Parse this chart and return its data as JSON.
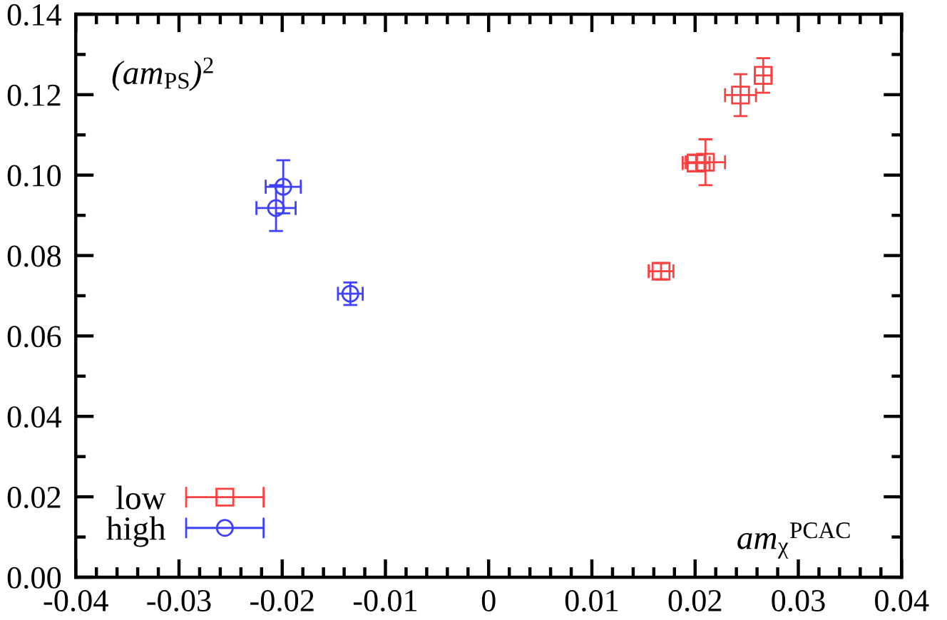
{
  "chart_data": {
    "type": "scatter",
    "xlabel": "am$_{χ}$$^{PCAC}$",
    "ylabel": "(am$_{PS}$)$^{2}$",
    "legend": "bottom left",
    "xlim": [
      -0.04,
      0.04
    ],
    "ylim": [
      0,
      0.14
    ],
    "xticks": [
      -0.04,
      -0.03,
      -0.02,
      -0.01,
      0,
      0.01,
      0.02,
      0.03,
      0.04
    ],
    "yticks": [
      {
        "value": 0,
        "label": "0.00"
      },
      {
        "value": 0.02,
        "label": "0.02"
      },
      {
        "value": 0.04,
        "label": "0.04"
      },
      {
        "value": 0.06,
        "label": "0.06"
      },
      {
        "value": 0.08,
        "label": "0.08"
      },
      {
        "value": 0.1,
        "label": "0.10"
      },
      {
        "value": 0.12,
        "label": "0.12"
      },
      {
        "value": 0.14,
        "label": "0.14"
      }
    ],
    "series": [
      {
        "name": "low",
        "color": "#ff4040",
        "marker": "square",
        "x": [
          0.0167,
          0.0201,
          0.021,
          0.0244,
          0.0266
        ],
        "values": [
          0.0761,
          0.103,
          0.1032,
          0.1199,
          0.1248
        ],
        "errors": [
          0.002,
          0.002,
          0.0057,
          0.0052,
          0.0043
        ],
        "xerrors": [
          0.0012,
          0.0013,
          0.0019,
          0.0015,
          0.0008
        ]
      },
      {
        "name": "high",
        "color": "#4040ff",
        "marker": "circle",
        "x": [
          -0.0206,
          -0.0199,
          -0.0134
        ],
        "values": [
          0.0918,
          0.0971,
          0.0705
        ],
        "errors": [
          0.0057,
          0.0066,
          0.0028
        ],
        "xerrors": [
          0.0019,
          0.0017,
          0.0012
        ]
      }
    ]
  }
}
